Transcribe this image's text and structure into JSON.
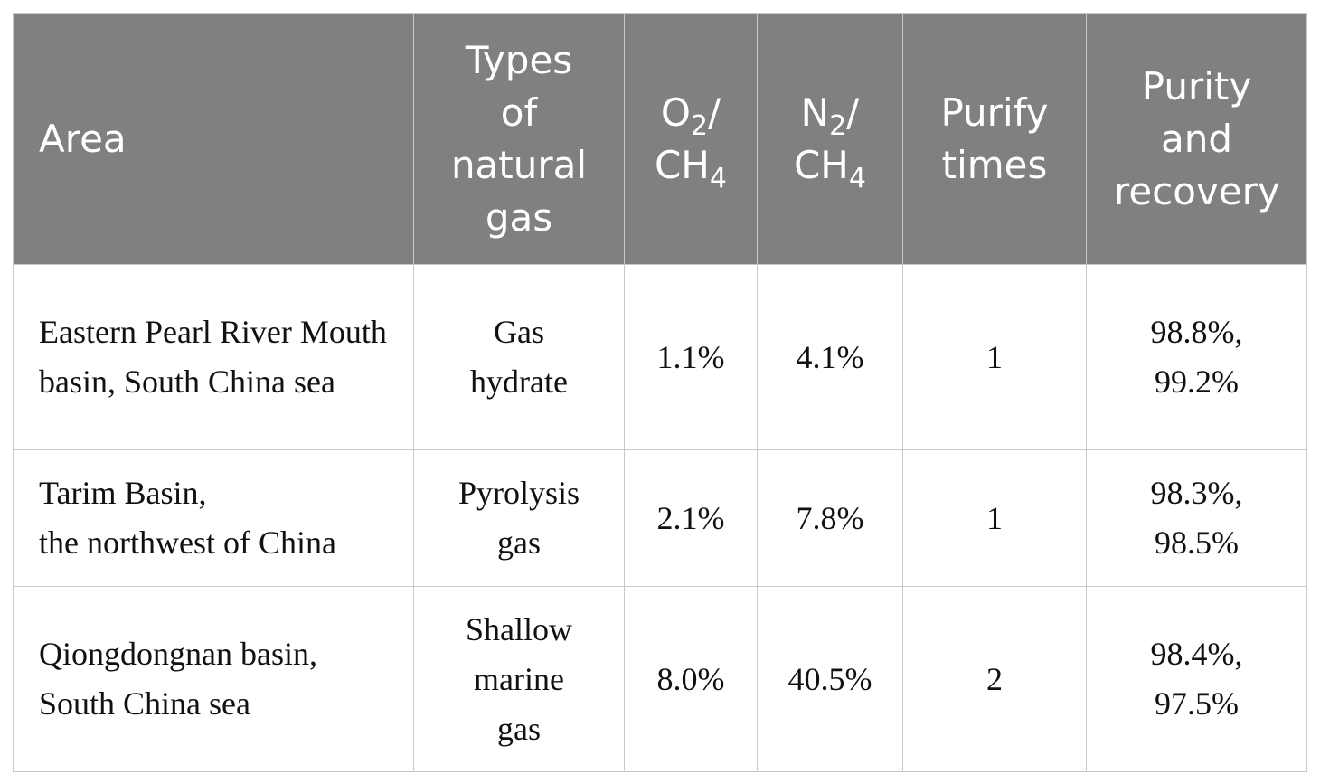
{
  "table": {
    "header": [
      "Area",
      "Types of natural gas",
      [
        "O",
        "2",
        "/",
        "CH",
        "4"
      ],
      [
        "N",
        "2",
        "/",
        "CH",
        "4"
      ],
      "Purify times",
      "Purity and recovery"
    ],
    "rows": [
      [
        "Eastern Pearl River Mouth basin, South China sea",
        "Gas\nhydrate",
        "1.1%",
        "4.1%",
        "1",
        "98.8%,\n99.2%"
      ],
      [
        "Tarim Basin,\nthe northwest of China",
        "Pyrolysis\ngas",
        "2.1%",
        "7.8%",
        "1",
        "98.3%,\n98.5%"
      ],
      [
        "Qiongdongnan basin,\nSouth China sea",
        "Shallow\nmarine\ngas",
        "8.0%",
        "40.5%",
        "2",
        "98.4%,\n97.5%"
      ]
    ]
  }
}
